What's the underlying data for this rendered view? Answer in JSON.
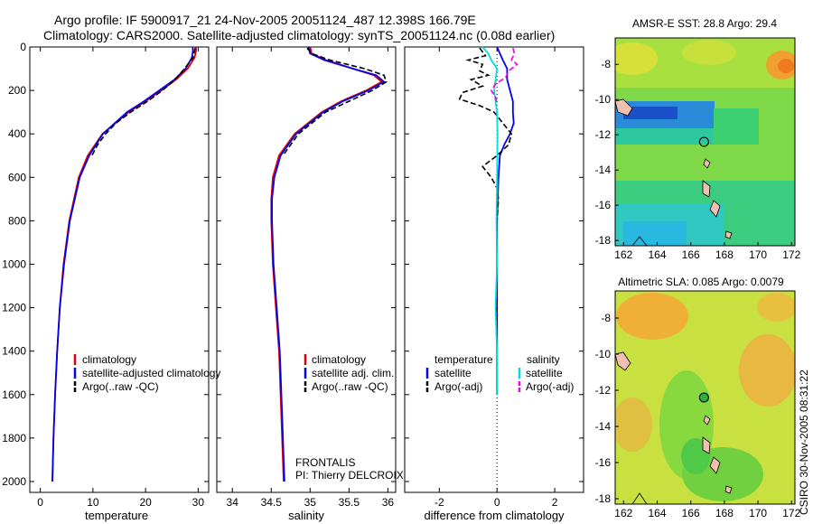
{
  "title_line1": "Argo profile: IF 5900917_21 24-Nov-2005 20051124_487 12.398S 166.79E",
  "title_line2": "Climatology: CARS2000. Satellite-adjusted climatology: synTS_20051124.nc (0.08d earlier)",
  "side_label": "CSIRO 30-Nov-2005 08:31:22",
  "colors": {
    "climatology": "#dd0000",
    "satellite": "#0000ee",
    "argo": "#000000",
    "sat_salinity": "#00dddd",
    "argo_salinity": "#ee00ee"
  },
  "chart_data": [
    {
      "type": "line",
      "id": "temperature",
      "xlabel": "temperature",
      "xlim": [
        -2,
        32
      ],
      "ylim": [
        0,
        2050
      ],
      "x_ticks": [
        "0",
        "10",
        "20",
        "30"
      ],
      "y_ticks": [
        "0",
        "200",
        "400",
        "600",
        "800",
        "1000",
        "1200",
        "1400",
        "1600",
        "1800",
        "2000"
      ],
      "legend": [
        "climatology",
        "satellite-adjusted climatology",
        "Argo(..raw -QC)"
      ],
      "series": [
        {
          "name": "climatology",
          "depth": [
            0,
            20,
            50,
            100,
            150,
            200,
            250,
            300,
            400,
            500,
            600,
            800,
            1000,
            1200,
            1400,
            1600,
            1800,
            2000
          ],
          "values": [
            29.6,
            29.6,
            29.3,
            28.0,
            25.8,
            23.0,
            20.0,
            16.8,
            11.8,
            9.0,
            7.3,
            5.5,
            4.4,
            3.7,
            3.2,
            2.8,
            2.5,
            2.3
          ]
        },
        {
          "name": "satellite-adjusted climatology",
          "depth": [
            0,
            20,
            50,
            100,
            150,
            200,
            250,
            300,
            400,
            500,
            600,
            800,
            1000,
            1200,
            1400,
            1600,
            1800,
            2000
          ],
          "values": [
            29.0,
            29.0,
            28.8,
            27.6,
            25.5,
            22.6,
            19.7,
            16.5,
            11.9,
            9.3,
            7.5,
            5.6,
            4.5,
            3.7,
            3.2,
            2.8,
            2.5,
            2.3
          ]
        },
        {
          "name": "Argo(..raw -QC)",
          "depth": [
            5,
            20,
            50,
            100,
            150,
            200,
            250,
            300,
            350,
            400,
            450,
            500
          ],
          "values": [
            29.4,
            29.3,
            29.0,
            27.4,
            25.6,
            23.2,
            20.4,
            17.2,
            14.4,
            12.4,
            10.9,
            9.8
          ]
        }
      ]
    },
    {
      "type": "line",
      "id": "salinity",
      "xlabel": "salinity",
      "xlim": [
        33.8,
        36.1
      ],
      "ylim": [
        0,
        2050
      ],
      "x_ticks": [
        "34",
        "34.5",
        "35",
        "35.5",
        "36"
      ],
      "legend": [
        "climatology",
        "satellite adj. clim.",
        "Argo(..raw -QC)"
      ],
      "annotations": [
        "FRONTALIS",
        "PI: Thierry DELCROIX"
      ],
      "series": [
        {
          "name": "climatology",
          "depth": [
            0,
            30,
            60,
            100,
            130,
            160,
            200,
            250,
            300,
            400,
            500,
            600,
            700,
            800,
            1000,
            1200,
            1400,
            1600,
            2000
          ],
          "values": [
            35.0,
            35.02,
            35.2,
            35.55,
            35.82,
            35.92,
            35.72,
            35.4,
            35.15,
            34.8,
            34.6,
            34.52,
            34.5,
            34.5,
            34.52,
            34.56,
            34.6,
            34.62,
            34.66
          ]
        },
        {
          "name": "satellite adj. clim.",
          "depth": [
            0,
            30,
            60,
            100,
            130,
            160,
            200,
            250,
            300,
            400,
            500,
            600,
            700,
            800,
            1000,
            1200,
            1400,
            1600,
            2000
          ],
          "values": [
            34.98,
            35.0,
            35.18,
            35.55,
            35.85,
            35.95,
            35.75,
            35.42,
            35.17,
            34.82,
            34.62,
            34.54,
            34.51,
            34.51,
            34.53,
            34.57,
            34.61,
            34.63,
            34.67
          ]
        },
        {
          "name": "Argo(..raw -QC)",
          "depth": [
            5,
            30,
            60,
            100,
            130,
            160,
            200,
            250,
            300,
            400,
            500
          ],
          "values": [
            34.96,
            35.02,
            35.25,
            35.7,
            35.95,
            35.98,
            35.8,
            35.5,
            35.2,
            34.85,
            34.65
          ]
        }
      ]
    },
    {
      "type": "line",
      "id": "difference",
      "xlabel": "difference from climatology",
      "xlim": [
        -3.2,
        3.0
      ],
      "ylim": [
        0,
        2050
      ],
      "x_ticks": [
        "-2",
        "0",
        "2"
      ],
      "legend_headers": [
        "temperature",
        "salinity"
      ],
      "legend": [
        "satellite",
        "Argo(-adj)",
        "satellite",
        "Argo(-adj)"
      ],
      "series": [
        {
          "name": "temperature satellite",
          "depth": [
            0,
            30,
            60,
            100,
            150,
            200,
            250,
            300,
            350,
            400,
            450,
            500,
            600,
            800,
            1000,
            1200,
            1400,
            1600
          ],
          "values": [
            0.0,
            0.1,
            0.2,
            0.35,
            0.35,
            0.45,
            0.55,
            0.55,
            0.58,
            0.45,
            0.25,
            0.1,
            0.05,
            0.0,
            0.0,
            0.0,
            0.0,
            0.0
          ]
        },
        {
          "name": "temperature Argo(-adj)",
          "depth": [
            5,
            40,
            60,
            80,
            110,
            130,
            150,
            180,
            210,
            240,
            270,
            300,
            350,
            400,
            450,
            500,
            550,
            600,
            650,
            700,
            800,
            1000,
            1200,
            1400,
            1600
          ],
          "values": [
            -0.6,
            -0.4,
            -1.0,
            -0.5,
            -0.6,
            -0.3,
            -0.9,
            -0.5,
            -1.2,
            -1.3,
            -0.6,
            -0.1,
            0.2,
            0.5,
            0.4,
            0.0,
            -0.5,
            -0.2,
            0.0,
            0.05,
            0.0,
            0.0,
            0.0,
            0.0,
            0.0
          ]
        },
        {
          "name": "salinity satellite",
          "depth": [
            0,
            30,
            60,
            100,
            150,
            200,
            300,
            400,
            600,
            800,
            1000,
            1200,
            1400,
            1600
          ],
          "values": [
            -0.5,
            -0.3,
            -0.2,
            0.0,
            -0.05,
            -0.1,
            0.0,
            0.02,
            0.0,
            -0.02,
            0.0,
            -0.05,
            0.0,
            0.0
          ]
        },
        {
          "name": "salinity Argo(-adj)",
          "depth": [
            5,
            30,
            60,
            80,
            110,
            140,
            170,
            200,
            230,
            260
          ],
          "values": [
            0.55,
            0.6,
            0.5,
            0.7,
            0.4,
            0.3,
            -0.05,
            -0.2,
            -0.05,
            0.0
          ]
        }
      ]
    },
    {
      "type": "heatmap",
      "id": "sst_map",
      "title": "AMSR-E SST: 28.8 Argo: 29.4",
      "xlim": [
        161.5,
        172.2
      ],
      "ylim": [
        -18.3,
        -6.5
      ],
      "x_ticks": [
        "162",
        "164",
        "166",
        "168",
        "170",
        "172"
      ],
      "y_ticks": [
        "-8",
        "-10",
        "-12",
        "-14",
        "-16",
        "-18"
      ],
      "argo_position": [
        166.79,
        -12.398
      ]
    },
    {
      "type": "heatmap",
      "id": "sla_map",
      "title": "Altimetric SLA: 0.085 Argo: 0.0079",
      "xlim": [
        161.5,
        172.2
      ],
      "ylim": [
        -18.3,
        -6.5
      ],
      "x_ticks": [
        "162",
        "164",
        "166",
        "168",
        "170",
        "172"
      ],
      "y_ticks": [
        "-8",
        "-10",
        "-12",
        "-14",
        "-16",
        "-18"
      ],
      "argo_position": [
        166.79,
        -12.398
      ]
    }
  ]
}
